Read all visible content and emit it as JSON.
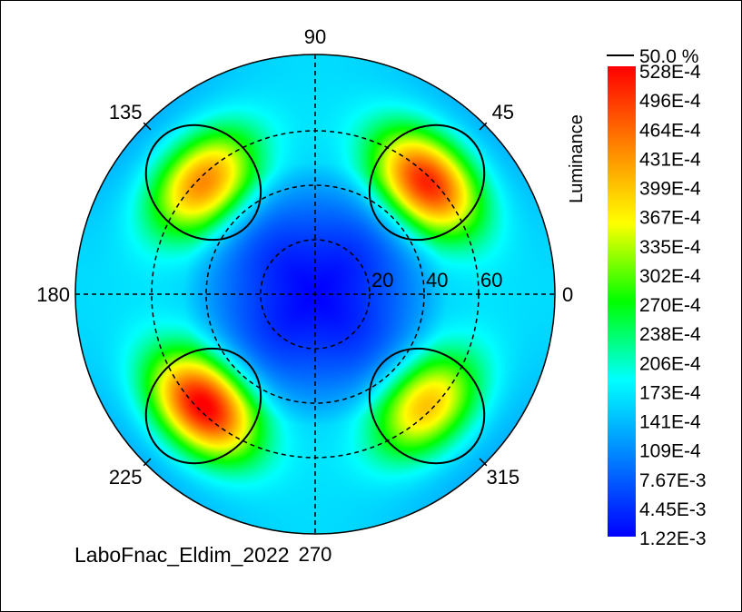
{
  "chart_data": {
    "type": "heatmap",
    "subtype": "polar-contour",
    "title": "",
    "caption": "LaboFnac_Eldim_2022",
    "colorbar": {
      "label": "Luminance",
      "contour_label": "50.0 %",
      "ticks": [
        "528E-4",
        "496E-4",
        "464E-4",
        "431E-4",
        "399E-4",
        "367E-4",
        "335E-4",
        "302E-4",
        "270E-4",
        "238E-4",
        "206E-4",
        "173E-4",
        "141E-4",
        "109E-4",
        "7.67E-3",
        "4.45E-3",
        "1.22E-3"
      ],
      "min": 0.00122,
      "max": 0.0528,
      "colors": [
        "#ff0000",
        "#ff8000",
        "#ffff00",
        "#00ff00",
        "#00ffff",
        "#0080ff",
        "#0000ff"
      ]
    },
    "azimuth_labels": [
      {
        "angle": 0,
        "text": "0"
      },
      {
        "angle": 45,
        "text": "45"
      },
      {
        "angle": 90,
        "text": "90"
      },
      {
        "angle": 135,
        "text": "135"
      },
      {
        "angle": 180,
        "text": "180"
      },
      {
        "angle": 225,
        "text": "225"
      },
      {
        "angle": 270,
        "text": "270"
      },
      {
        "angle": 315,
        "text": "315"
      }
    ],
    "radial_labels": [
      {
        "value": 20,
        "text": "20"
      },
      {
        "value": 40,
        "text": "40"
      },
      {
        "value": 60,
        "text": "60"
      }
    ],
    "radial_max": 88,
    "hotspots": [
      {
        "azimuth": 45,
        "inclination": 58,
        "peak": 0.05
      },
      {
        "azimuth": 135,
        "inclination": 58,
        "peak": 0.043
      },
      {
        "azimuth": 225,
        "inclination": 58,
        "peak": 0.0528
      },
      {
        "azimuth": 315,
        "inclination": 58,
        "peak": 0.039
      }
    ]
  }
}
